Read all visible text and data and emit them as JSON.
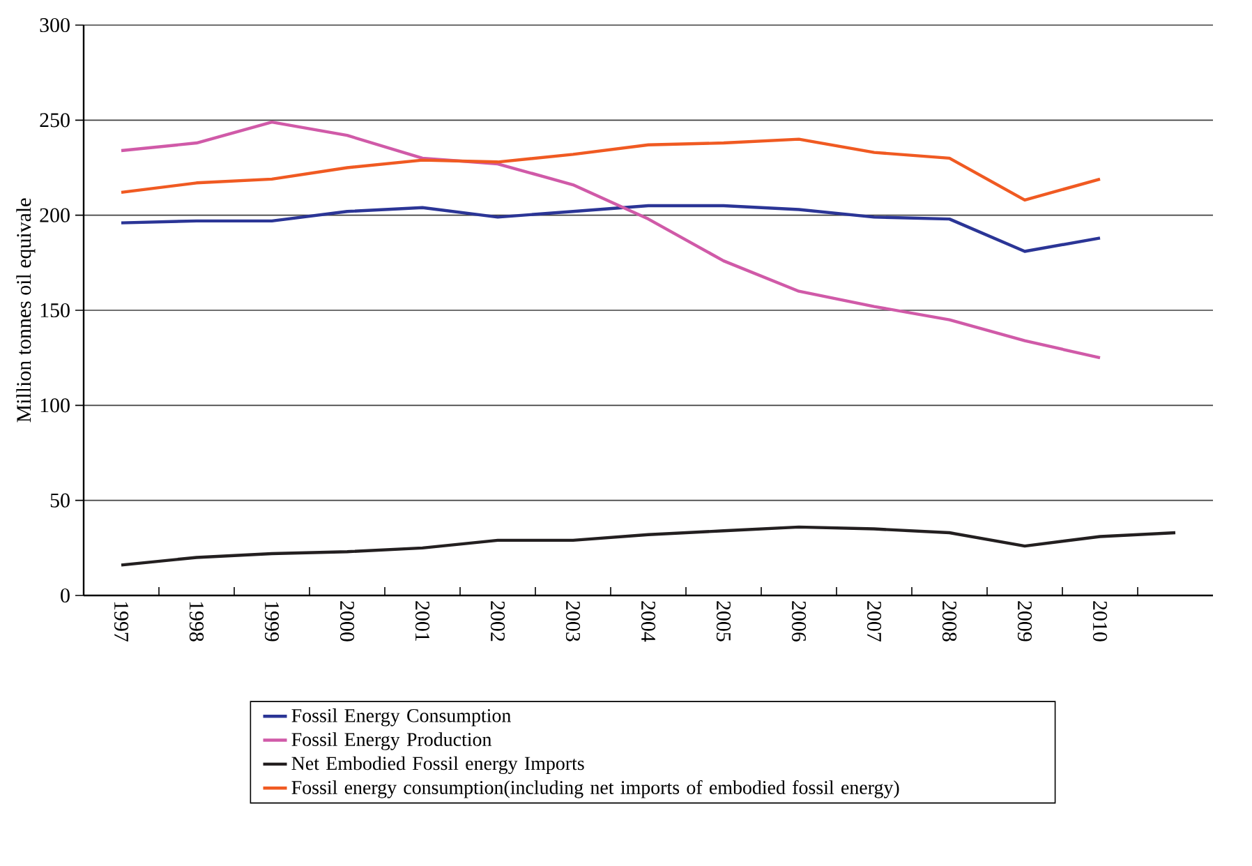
{
  "chart_data": {
    "type": "line",
    "ylabel": "Million tonnes oil equivale",
    "categories": [
      "1997",
      "1998",
      "1999",
      "2000",
      "2001",
      "2002",
      "2003",
      "2004",
      "2005",
      "2006",
      "2007",
      "2008",
      "2009",
      "2010",
      null
    ],
    "ylim": [
      0,
      300
    ],
    "yticks": [
      0,
      50,
      100,
      150,
      200,
      250,
      300
    ],
    "grid": "y",
    "legend": "bottom",
    "line_style": "solid",
    "marker": "none",
    "series": [
      {
        "name": "Fossil Energy Consumption",
        "color": "#2b3596",
        "values": [
          196,
          197,
          197,
          202,
          204,
          199,
          202,
          205,
          205,
          203,
          199,
          198,
          181,
          188,
          null
        ]
      },
      {
        "name": "Fossil Energy Production",
        "color": "#d05aa8",
        "values": [
          234,
          238,
          249,
          242,
          230,
          227,
          216,
          198,
          176,
          160,
          152,
          145,
          134,
          125,
          null
        ]
      },
      {
        "name": "Net Embodied Fossil energy Imports",
        "color": "#231f20",
        "values": [
          16,
          20,
          22,
          23,
          25,
          29,
          29,
          32,
          34,
          36,
          35,
          33,
          26,
          31,
          33
        ]
      },
      {
        "name": "Fossil energy consumption(including net imports of embodied fossil energy)",
        "color": "#f05a22",
        "values": [
          212,
          217,
          219,
          225,
          229,
          228,
          232,
          237,
          238,
          240,
          233,
          230,
          208,
          219,
          null
        ]
      }
    ]
  }
}
